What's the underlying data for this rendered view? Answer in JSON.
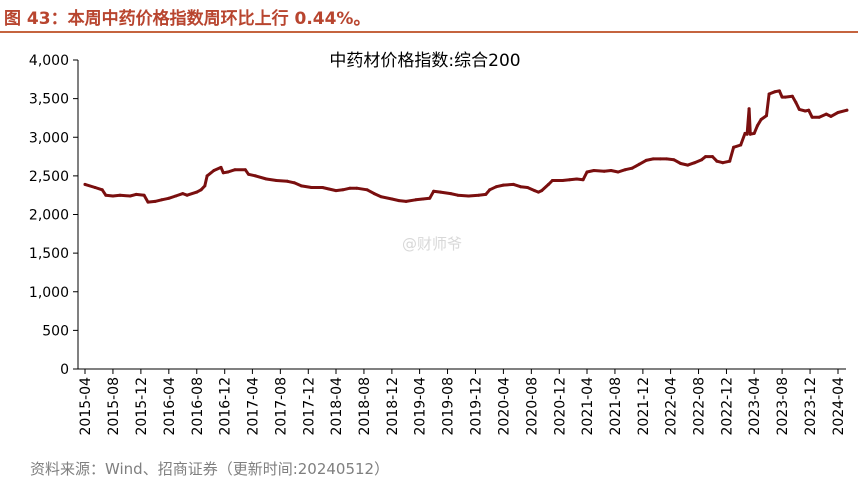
{
  "figure": {
    "title": "图 43：本周中药价格指数周环比上行 0.44%。",
    "source": "资料来源：Wind、招商证券（更新时间:20240512）",
    "watermark": "@财师爷"
  },
  "colors": {
    "title": "#b8452f",
    "rule": "#c5643f",
    "line": "#7a0f0f",
    "axis": "#000000"
  },
  "chart_data": {
    "type": "line",
    "title": "中药材价格指数:综合200",
    "xlabel": "",
    "ylabel": "",
    "ylim": [
      0,
      4000
    ],
    "yticks": [
      0,
      500,
      1000,
      1500,
      2000,
      2500,
      3000,
      3500,
      4000
    ],
    "ytick_labels": [
      "0",
      "500",
      "1,000",
      "1,500",
      "2,000",
      "2,500",
      "3,000",
      "3,500",
      "4,000"
    ],
    "xticks": [
      "2015-04",
      "2015-08",
      "2015-12",
      "2016-04",
      "2016-08",
      "2016-12",
      "2017-04",
      "2017-08",
      "2017-12",
      "2018-04",
      "2018-08",
      "2018-12",
      "2019-04",
      "2019-08",
      "2019-12",
      "2020-04",
      "2020-08",
      "2020-12",
      "2021-04",
      "2021-08",
      "2021-12",
      "2022-04",
      "2022-08",
      "2022-12",
      "2023-04",
      "2023-08",
      "2023-12",
      "2024-04"
    ],
    "grid": false,
    "legend": "none",
    "series": [
      {
        "name": "",
        "points": [
          [
            "2015-04-01",
            2390
          ],
          [
            "2015-05-15",
            2350
          ],
          [
            "2015-06-15",
            2320
          ],
          [
            "2015-07-01",
            2250
          ],
          [
            "2015-08-01",
            2240
          ],
          [
            "2015-09-01",
            2250
          ],
          [
            "2015-10-15",
            2240
          ],
          [
            "2015-11-10",
            2260
          ],
          [
            "2015-12-15",
            2250
          ],
          [
            "2016-01-01",
            2160
          ],
          [
            "2016-02-01",
            2170
          ],
          [
            "2016-03-01",
            2190
          ],
          [
            "2016-04-01",
            2210
          ],
          [
            "2016-05-01",
            2240
          ],
          [
            "2016-06-01",
            2270
          ],
          [
            "2016-06-20",
            2250
          ],
          [
            "2016-08-01",
            2290
          ],
          [
            "2016-08-20",
            2320
          ],
          [
            "2016-09-05",
            2370
          ],
          [
            "2016-09-15",
            2500
          ],
          [
            "2016-10-15",
            2570
          ],
          [
            "2016-11-15",
            2610
          ],
          [
            "2016-11-25",
            2540
          ],
          [
            "2016-12-15",
            2550
          ],
          [
            "2017-01-15",
            2580
          ],
          [
            "2017-03-01",
            2580
          ],
          [
            "2017-03-15",
            2520
          ],
          [
            "2017-04-15",
            2500
          ],
          [
            "2017-06-01",
            2460
          ],
          [
            "2017-07-15",
            2440
          ],
          [
            "2017-09-01",
            2430
          ],
          [
            "2017-10-01",
            2410
          ],
          [
            "2017-11-01",
            2370
          ],
          [
            "2017-12-15",
            2350
          ],
          [
            "2018-02-01",
            2350
          ],
          [
            "2018-03-01",
            2330
          ],
          [
            "2018-04-01",
            2310
          ],
          [
            "2018-05-01",
            2320
          ],
          [
            "2018-06-01",
            2340
          ],
          [
            "2018-07-01",
            2340
          ],
          [
            "2018-08-15",
            2320
          ],
          [
            "2018-09-15",
            2270
          ],
          [
            "2018-10-15",
            2230
          ],
          [
            "2018-12-01",
            2200
          ],
          [
            "2019-01-01",
            2180
          ],
          [
            "2019-02-01",
            2170
          ],
          [
            "2019-03-15",
            2190
          ],
          [
            "2019-04-15",
            2200
          ],
          [
            "2019-05-15",
            2210
          ],
          [
            "2019-06-01",
            2300
          ],
          [
            "2019-07-01",
            2290
          ],
          [
            "2019-08-15",
            2270
          ],
          [
            "2019-09-15",
            2250
          ],
          [
            "2019-11-01",
            2240
          ],
          [
            "2019-12-15",
            2250
          ],
          [
            "2020-01-15",
            2260
          ],
          [
            "2020-02-01",
            2320
          ],
          [
            "2020-03-01",
            2360
          ],
          [
            "2020-04-01",
            2380
          ],
          [
            "2020-05-15",
            2390
          ],
          [
            "2020-06-15",
            2360
          ],
          [
            "2020-07-15",
            2350
          ],
          [
            "2020-08-15",
            2310
          ],
          [
            "2020-09-01",
            2290
          ],
          [
            "2020-09-15",
            2310
          ],
          [
            "2020-10-15",
            2390
          ],
          [
            "2020-11-01",
            2440
          ],
          [
            "2020-12-15",
            2440
          ],
          [
            "2021-01-15",
            2450
          ],
          [
            "2021-02-15",
            2460
          ],
          [
            "2021-03-15",
            2450
          ],
          [
            "2021-04-01",
            2550
          ],
          [
            "2021-05-01",
            2570
          ],
          [
            "2021-06-15",
            2560
          ],
          [
            "2021-07-15",
            2570
          ],
          [
            "2021-08-15",
            2550
          ],
          [
            "2021-09-15",
            2580
          ],
          [
            "2021-10-15",
            2600
          ],
          [
            "2021-11-15",
            2650
          ],
          [
            "2021-12-15",
            2700
          ],
          [
            "2022-01-15",
            2720
          ],
          [
            "2022-02-15",
            2720
          ],
          [
            "2022-03-15",
            2720
          ],
          [
            "2022-04-15",
            2710
          ],
          [
            "2022-05-15",
            2660
          ],
          [
            "2022-06-15",
            2640
          ],
          [
            "2022-07-15",
            2670
          ],
          [
            "2022-08-15",
            2710
          ],
          [
            "2022-09-01",
            2750
          ],
          [
            "2022-10-01",
            2750
          ],
          [
            "2022-10-20",
            2690
          ],
          [
            "2022-11-15",
            2670
          ],
          [
            "2022-12-15",
            2690
          ],
          [
            "2023-01-01",
            2870
          ],
          [
            "2023-02-01",
            2900
          ],
          [
            "2023-02-20",
            3050
          ],
          [
            "2023-03-01",
            3040
          ],
          [
            "2023-03-10",
            3370
          ],
          [
            "2023-03-15",
            3040
          ],
          [
            "2023-04-01",
            3050
          ],
          [
            "2023-04-15",
            3150
          ],
          [
            "2023-05-01",
            3230
          ],
          [
            "2023-05-25",
            3280
          ],
          [
            "2023-06-05",
            3560
          ],
          [
            "2023-07-01",
            3590
          ],
          [
            "2023-07-20",
            3600
          ],
          [
            "2023-08-01",
            3520
          ],
          [
            "2023-08-15",
            3520
          ],
          [
            "2023-09-15",
            3530
          ],
          [
            "2023-09-30",
            3450
          ],
          [
            "2023-10-15",
            3360
          ],
          [
            "2023-11-10",
            3340
          ],
          [
            "2023-11-25",
            3350
          ],
          [
            "2023-12-10",
            3260
          ],
          [
            "2024-01-10",
            3260
          ],
          [
            "2024-02-10",
            3300
          ],
          [
            "2024-03-01",
            3270
          ],
          [
            "2024-04-01",
            3320
          ],
          [
            "2024-05-10",
            3350
          ]
        ]
      }
    ]
  }
}
